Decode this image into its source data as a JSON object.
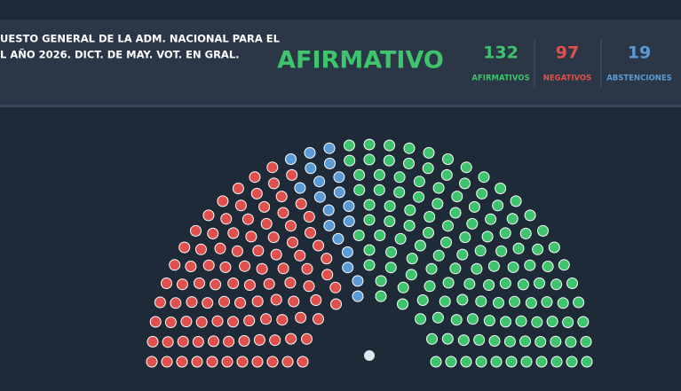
{
  "header": {
    "title_lines": [
      "UESTO GENERAL DE LA ADM. NACIONAL PARA EL",
      "L AÑO 2026. DICT. DE MAY. VOT. EN GRAL."
    ],
    "result": "AFIRMATIVO"
  },
  "results": [
    {
      "value": 132,
      "label": "AFIRMATIVOS",
      "color": "#3ec46d"
    },
    {
      "value": 97,
      "label": "NEGATIVOS",
      "color": "#e0504d"
    },
    {
      "value": 19,
      "label": "ABSTENCIONES",
      "color": "#5b9bd5"
    }
  ]
}
